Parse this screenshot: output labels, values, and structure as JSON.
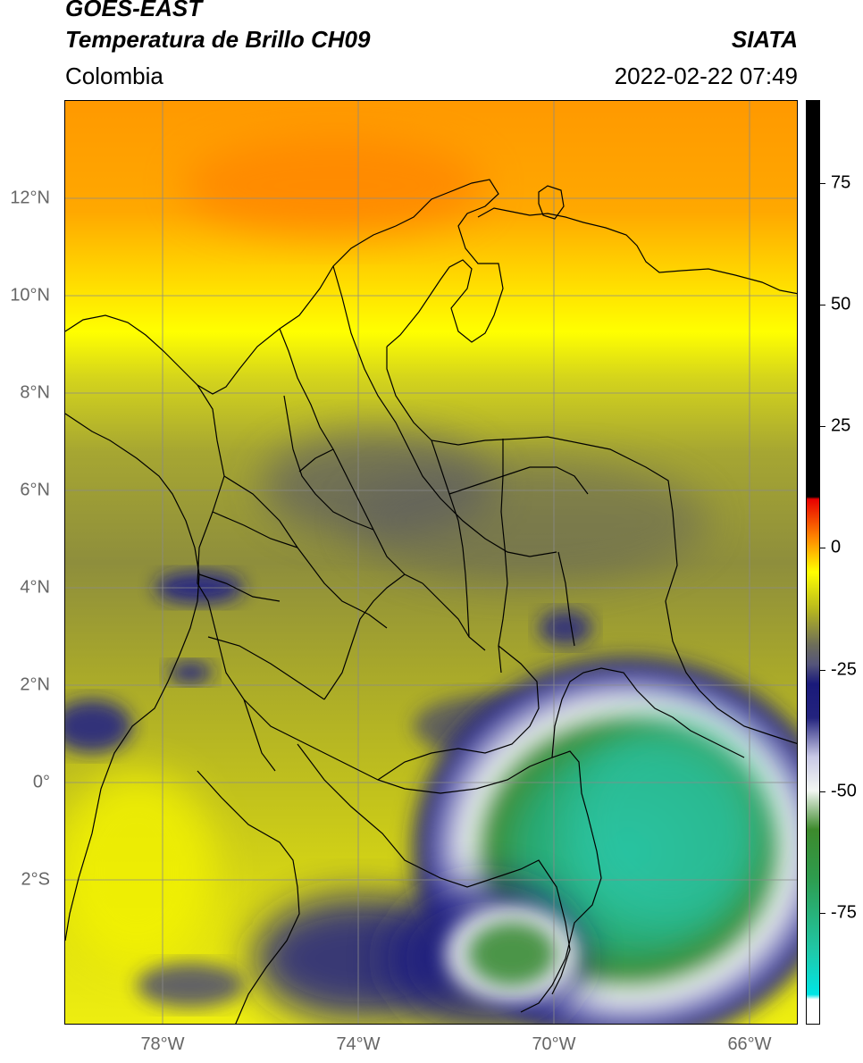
{
  "header": {
    "satellite": "GOES-EAST",
    "product": "Temperatura de Brillo CH09",
    "organization": "SIATA",
    "region": "Colombia",
    "datetime": "2022-02-22 07:49"
  },
  "map": {
    "lat_labels": [
      "12°N",
      "10°N",
      "8°N",
      "6°N",
      "4°N",
      "2°N",
      "0°",
      "2°S"
    ],
    "lon_labels": [
      "78°W",
      "74°W",
      "70°W",
      "66°W"
    ],
    "lat_values": [
      12,
      10,
      8,
      6,
      4,
      2,
      0,
      -2
    ],
    "lon_values": [
      -78,
      -74,
      -70,
      -66
    ],
    "extent": {
      "lon_min": -80.0,
      "lon_max": -65.0,
      "lat_min": -5.0,
      "lat_max": 14.0
    },
    "gridlines": true
  },
  "colorbar": {
    "labels": [
      "75",
      "50",
      "25",
      "0",
      "-25",
      "-50",
      "-75"
    ],
    "values": [
      75,
      50,
      25,
      0,
      -25,
      -50,
      -75
    ],
    "vmin": -100,
    "vmax": 90,
    "stops": [
      {
        "value": -100,
        "color": "#ffffff"
      },
      {
        "value": -95,
        "color": "#ffffff"
      },
      {
        "value": -94,
        "color": "#00e5e5"
      },
      {
        "value": -85,
        "color": "#20c8a8"
      },
      {
        "value": -70,
        "color": "#2e9c4e"
      },
      {
        "value": -60,
        "color": "#3d8a2c"
      },
      {
        "value": -52,
        "color": "#f2f6f2"
      },
      {
        "value": -45,
        "color": "#c8c8e6"
      },
      {
        "value": -37,
        "color": "#23237e"
      },
      {
        "value": -30,
        "color": "#1a1a7a"
      },
      {
        "value": -26,
        "color": "#55557a"
      },
      {
        "value": -22,
        "color": "#6d6d5a"
      },
      {
        "value": -15,
        "color": "#b5b520"
      },
      {
        "value": -7,
        "color": "#ffff00"
      },
      {
        "value": 0,
        "color": "#ff8800"
      },
      {
        "value": 8,
        "color": "#e80000"
      },
      {
        "value": 8.5,
        "color": "#000000"
      },
      {
        "value": 90,
        "color": "#000000"
      }
    ]
  }
}
